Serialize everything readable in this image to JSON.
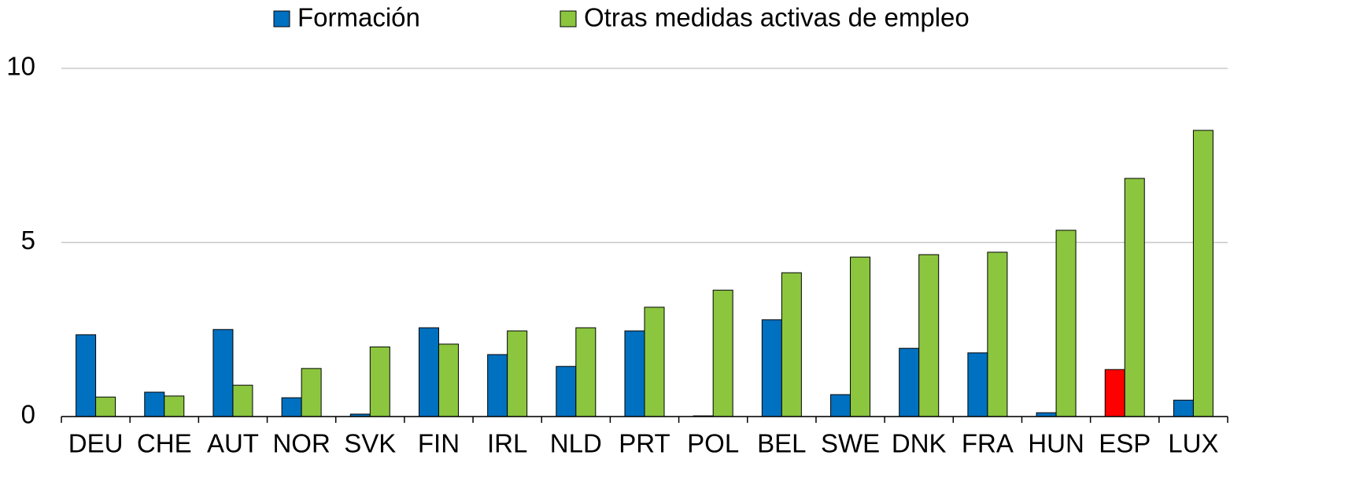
{
  "chart_data": {
    "type": "bar",
    "categories": [
      "DEU",
      "CHE",
      "AUT",
      "NOR",
      "SVK",
      "FIN",
      "IRL",
      "NLD",
      "PRT",
      "POL",
      "BEL",
      "SWE",
      "DNK",
      "FRA",
      "HUN",
      "ESP",
      "LUX"
    ],
    "series": [
      {
        "name": "Formación",
        "color": "#0070c0",
        "colors": [
          "#0070c0",
          "#0070c0",
          "#0070c0",
          "#0070c0",
          "#0070c0",
          "#0070c0",
          "#0070c0",
          "#0070c0",
          "#0070c0",
          "#0070c0",
          "#0070c0",
          "#0070c0",
          "#0070c0",
          "#0070c0",
          "#0070c0",
          "#ff0000",
          "#0070c0"
        ],
        "values": [
          2.35,
          0.7,
          2.5,
          0.54,
          0.07,
          2.55,
          1.78,
          1.44,
          2.46,
          0.02,
          2.78,
          0.63,
          1.96,
          1.83,
          0.11,
          1.35,
          0.47
        ]
      },
      {
        "name": "Otras medidas activas de empleo",
        "color": "#8cc63f",
        "values": [
          0.56,
          0.59,
          0.9,
          1.38,
          2.0,
          2.08,
          2.46,
          2.55,
          3.14,
          3.63,
          4.13,
          4.58,
          4.65,
          4.72,
          5.35,
          6.84,
          8.22
        ]
      }
    ],
    "ylim": [
      0,
      10
    ],
    "yticks": [
      0,
      5,
      10
    ],
    "grid": true
  }
}
